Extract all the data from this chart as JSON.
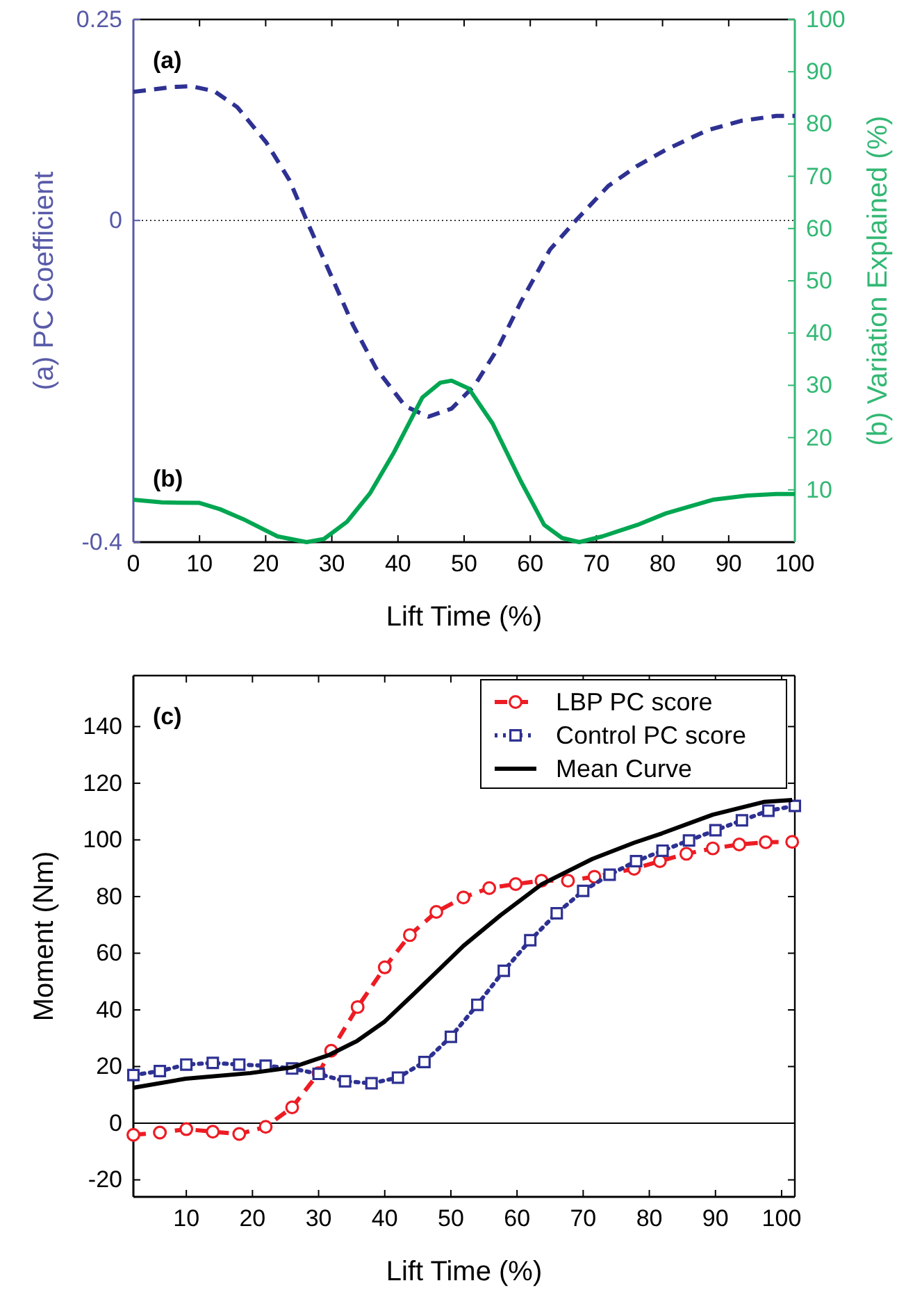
{
  "chart_data": [
    {
      "type": "line",
      "xlabel": "Lift Time (%)",
      "ylabel": "(a) PC Coefficient",
      "y2label": "(b) Variation Explained (%)",
      "xlim": [
        0,
        100
      ],
      "xticks": [
        0,
        10,
        20,
        30,
        40,
        50,
        60,
        70,
        80,
        90,
        100
      ],
      "ylim": [
        -0.4,
        0.25
      ],
      "yticks": [
        -0.4,
        0,
        0.25
      ],
      "y2lim": [
        0,
        100
      ],
      "y2ticks": [
        10,
        20,
        30,
        40,
        50,
        60,
        70,
        80,
        90,
        100
      ],
      "ref_lines": [
        {
          "axis": "y",
          "value": 0,
          "color": "#000000",
          "line_style": "dotted"
        }
      ],
      "annotations": [
        "(a)",
        "(b)"
      ],
      "grid": false,
      "legend": false,
      "series": [
        {
          "color": "#2e3192",
          "line_style": "dashed",
          "marker": "none",
          "x": [
            0,
            6,
            8.7,
            12.2,
            15.7,
            20.1,
            23.6,
            26.2,
            29.7,
            33.2,
            36.7,
            41.1,
            44.6,
            48.1,
            51.6,
            55.1,
            58.6,
            63,
            67,
            71.8,
            76.2,
            80.5,
            86.7,
            91.9,
            97.2,
            100
          ],
          "values": [
            0.16,
            0.166,
            0.167,
            0.161,
            0.141,
            0.097,
            0.05,
            0,
            -0.065,
            -0.13,
            -0.184,
            -0.231,
            -0.244,
            -0.234,
            -0.205,
            -0.159,
            -0.101,
            -0.036,
            0.001,
            0.043,
            0.068,
            0.088,
            0.112,
            0.124,
            0.13,
            0.13
          ]
        },
        {
          "color": "#00a651",
          "axis": "y2",
          "line_style": "solid",
          "marker": "none",
          "x": [
            0,
            4.3,
            10,
            13.1,
            16.6,
            21.8,
            26.2,
            28.8,
            32.3,
            35.8,
            39.4,
            43.7,
            46.4,
            48.1,
            50.7,
            54.3,
            58.6,
            62.1,
            64.8,
            67.4,
            70.9,
            76.2,
            80.5,
            87.6,
            92.8,
            97.2,
            100
          ],
          "values": [
            8.1,
            7.6,
            7.5,
            6.3,
            4.4,
            1.1,
            0,
            0.6,
            3.9,
            9.4,
            17.2,
            27.7,
            30.5,
            30.9,
            29.4,
            22.7,
            11.6,
            3.3,
            0.8,
            0,
            1.1,
            3.3,
            5.5,
            8.1,
            8.9,
            9.2,
            9.2
          ]
        }
      ]
    },
    {
      "type": "line",
      "xlabel": "Lift Time  (%)",
      "ylabel": "Moment (Nm)",
      "xlim": [
        2,
        102
      ],
      "xticks": [
        10,
        20,
        30,
        40,
        50,
        60,
        70,
        80,
        90,
        100
      ],
      "ylim": [
        -26,
        158
      ],
      "yticks": [
        -20,
        0,
        20,
        40,
        60,
        80,
        100,
        120,
        140
      ],
      "ref_lines": [
        {
          "axis": "y",
          "value": 0,
          "color": "#000000",
          "line_style": "solid"
        }
      ],
      "annotations": [
        "(c)"
      ],
      "grid": false,
      "legend": "top right",
      "series": [
        {
          "name": "LBP PC score",
          "color": "#ed1c24",
          "line_style": "dashed",
          "marker": "circle",
          "x": [
            2,
            6,
            10,
            14,
            18,
            22,
            26,
            30,
            31.9,
            35.9,
            40,
            43.8,
            47.8,
            51.9,
            55.8,
            59.8,
            63.7,
            67.7,
            71.7,
            77.7,
            81.6,
            85.6,
            89.6,
            93.6,
            97.6,
            101.6
          ],
          "values": [
            -4.1,
            -3.3,
            -2.1,
            -3,
            -3.8,
            -1.3,
            5.6,
            17.7,
            25.6,
            41,
            55,
            66.4,
            74.6,
            79.7,
            83,
            84.4,
            85.6,
            85.6,
            87,
            89.8,
            92.5,
            95.1,
            97,
            98.4,
            99.2,
            99.3
          ]
        },
        {
          "name": "Control PC score",
          "color": "#2e3192",
          "line_style": "dotted",
          "marker": "square",
          "x": [
            2,
            6,
            10,
            14,
            18,
            22,
            26,
            30,
            34,
            38,
            42,
            46,
            50,
            54,
            58,
            62,
            66,
            70,
            74,
            78,
            82,
            86,
            90,
            94,
            98,
            102
          ],
          "values": [
            17,
            18.4,
            20.7,
            21.3,
            20.7,
            20.3,
            19.3,
            17.4,
            14.8,
            14.1,
            16.1,
            21.6,
            30.5,
            41.8,
            53.8,
            64.6,
            74.1,
            82,
            87.7,
            92.5,
            96.2,
            99.8,
            103.4,
            106.9,
            110.3,
            112
          ]
        },
        {
          "name": "Mean Curve",
          "color": "#000000",
          "line_style": "solid",
          "marker": "none",
          "x": [
            2,
            9.9,
            19.7,
            26,
            31.6,
            35.8,
            40,
            44.2,
            47.7,
            51.9,
            57.5,
            63.7,
            71.4,
            77.7,
            81.9,
            89.6,
            97.3,
            101.6
          ],
          "values": [
            12.5,
            15.7,
            17.7,
            19.7,
            24.1,
            29,
            35.9,
            45.2,
            53.1,
            62.6,
            73.4,
            84.3,
            93.3,
            99,
            102.3,
            108.9,
            113.4,
            114.1
          ]
        }
      ]
    }
  ]
}
